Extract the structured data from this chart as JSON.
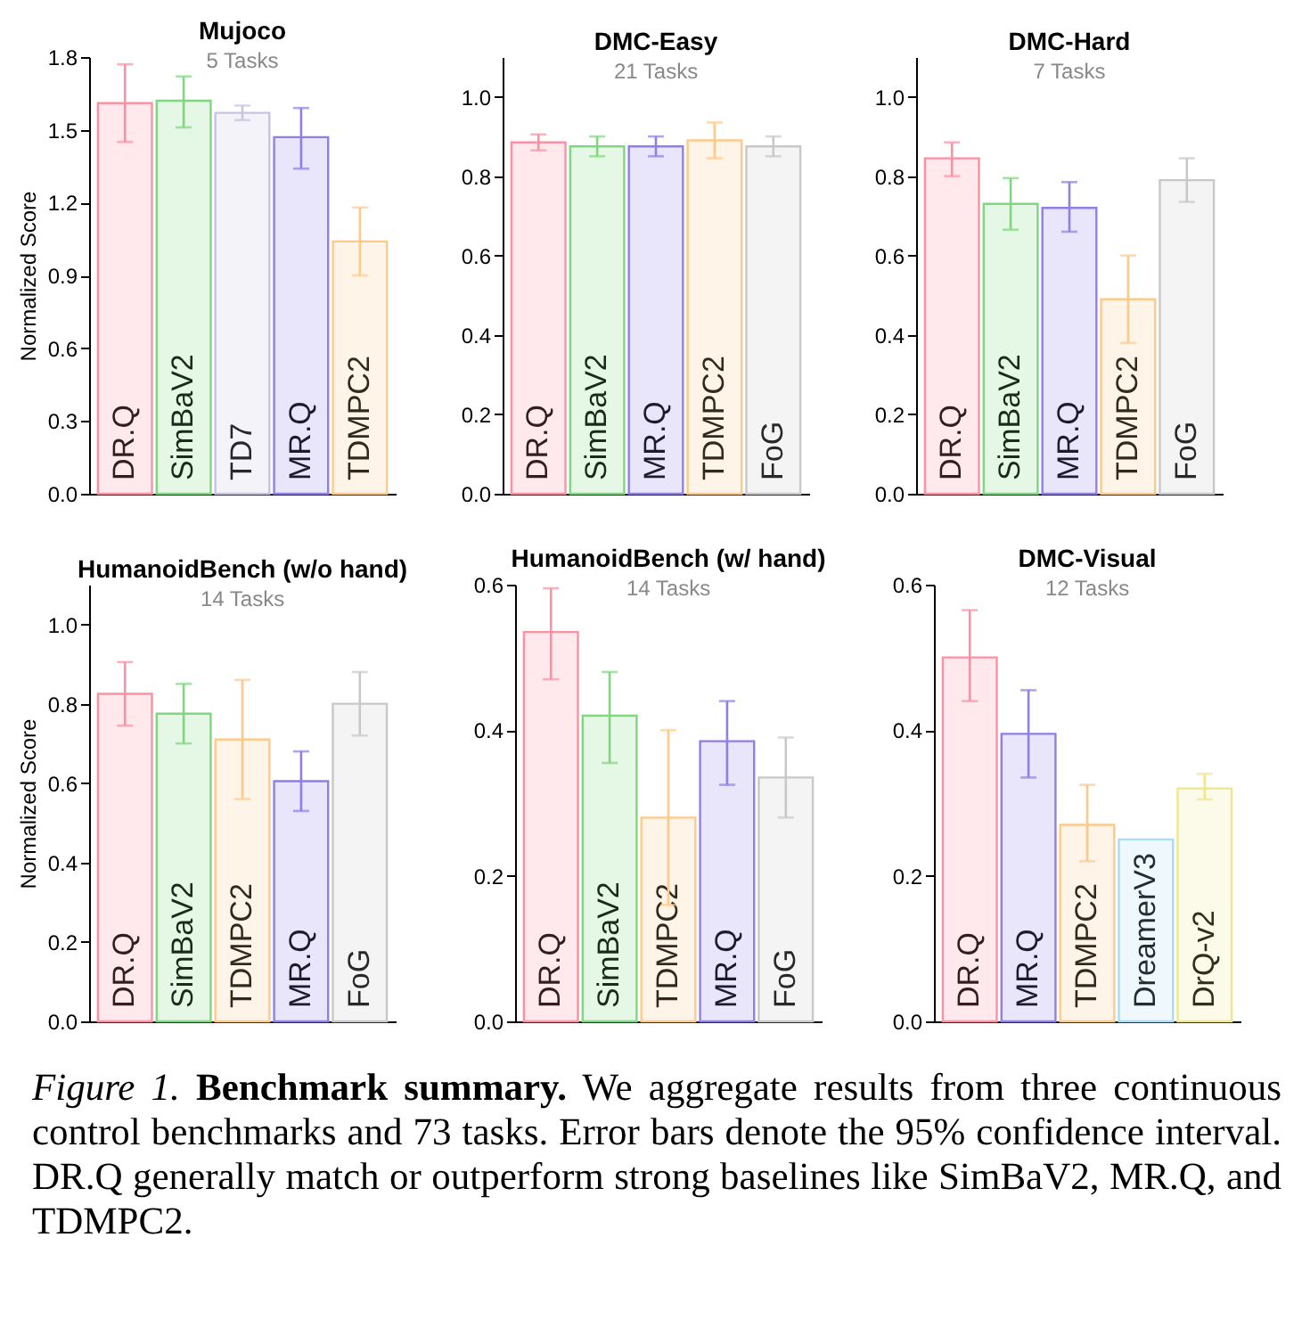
{
  "chart_data": [
    {
      "type": "bar",
      "title": "Mujoco",
      "subtitle": "5 Tasks",
      "ylabel": "Normalized Score",
      "categories": [
        "DR.Q",
        "SimBaV2",
        "TD7",
        "MR.Q",
        "TDMPC2"
      ],
      "values": [
        1.61,
        1.62,
        1.57,
        1.47,
        1.04
      ],
      "errors": [
        [
          1.45,
          1.77
        ],
        [
          1.51,
          1.72
        ],
        [
          1.54,
          1.6
        ],
        [
          1.34,
          1.59
        ],
        [
          0.9,
          1.18
        ]
      ],
      "colors": [
        "#ff8fa3",
        "#7fd77f",
        "#c8c3e0",
        "#8f7fe8",
        "#ffc98a"
      ],
      "ylim": [
        0,
        1.8
      ],
      "yticks": [
        {
          "value": 0,
          "label": "0.0"
        },
        {
          "value": 0.3,
          "label": "0.3"
        },
        {
          "value": 0.6,
          "label": "0.6"
        },
        {
          "value": 0.9,
          "label": "0.9"
        },
        {
          "value": 1.2,
          "label": "1.2"
        },
        {
          "value": 1.5,
          "label": "1.5"
        },
        {
          "value": 1.8,
          "label": "1.8"
        }
      ]
    },
    {
      "type": "bar",
      "title": "DMC-Easy",
      "subtitle": "21 Tasks",
      "categories": [
        "DR.Q",
        "SimBaV2",
        "MR.Q",
        "TDMPC2",
        "FoG"
      ],
      "values": [
        0.885,
        0.875,
        0.875,
        0.89,
        0.875
      ],
      "errors": [
        [
          0.865,
          0.905
        ],
        [
          0.85,
          0.9
        ],
        [
          0.85,
          0.9
        ],
        [
          0.845,
          0.935
        ],
        [
          0.85,
          0.9
        ]
      ],
      "colors": [
        "#ff8fa3",
        "#7fd77f",
        "#8f7fe8",
        "#ffc98a",
        "#c8c8c8"
      ],
      "ylim": [
        0,
        1.1
      ],
      "yticks": [
        {
          "value": 0,
          "label": "0.0"
        },
        {
          "value": 0.2,
          "label": "0.2"
        },
        {
          "value": 0.4,
          "label": "0.4"
        },
        {
          "value": 0.6,
          "label": "0.6"
        },
        {
          "value": 0.8,
          "label": "0.8"
        },
        {
          "value": 1,
          "label": "1.0"
        }
      ]
    },
    {
      "type": "bar",
      "title": "DMC-Hard",
      "subtitle": "7 Tasks",
      "categories": [
        "DR.Q",
        "SimBaV2",
        "MR.Q",
        "TDMPC2",
        "FoG"
      ],
      "values": [
        0.845,
        0.73,
        0.72,
        0.49,
        0.79
      ],
      "errors": [
        [
          0.8,
          0.885
        ],
        [
          0.665,
          0.795
        ],
        [
          0.66,
          0.785
        ],
        [
          0.38,
          0.6
        ],
        [
          0.735,
          0.845
        ]
      ],
      "colors": [
        "#ff8fa3",
        "#7fd77f",
        "#8f7fe8",
        "#ffc98a",
        "#c8c8c8"
      ],
      "ylim": [
        0,
        1.1
      ],
      "yticks": [
        {
          "value": 0,
          "label": "0.0"
        },
        {
          "value": 0.2,
          "label": "0.2"
        },
        {
          "value": 0.4,
          "label": "0.4"
        },
        {
          "value": 0.6,
          "label": "0.6"
        },
        {
          "value": 0.8,
          "label": "0.8"
        },
        {
          "value": 1,
          "label": "1.0"
        }
      ]
    },
    {
      "type": "bar",
      "title": "HumanoidBench (w/o hand)",
      "subtitle": "14 Tasks",
      "ylabel": "Normalized Score",
      "categories": [
        "DR.Q",
        "SimBaV2",
        "TDMPC2",
        "MR.Q",
        "FoG"
      ],
      "values": [
        0.825,
        0.775,
        0.71,
        0.605,
        0.8
      ],
      "errors": [
        [
          0.745,
          0.905
        ],
        [
          0.7,
          0.85
        ],
        [
          0.56,
          0.86
        ],
        [
          0.53,
          0.68
        ],
        [
          0.72,
          0.88
        ]
      ],
      "colors": [
        "#ff8fa3",
        "#7fd77f",
        "#ffc98a",
        "#8f7fe8",
        "#c8c8c8"
      ],
      "ylim": [
        0,
        1.1
      ],
      "yticks": [
        {
          "value": 0,
          "label": "0.0"
        },
        {
          "value": 0.2,
          "label": "0.2"
        },
        {
          "value": 0.4,
          "label": "0.4"
        },
        {
          "value": 0.6,
          "label": "0.6"
        },
        {
          "value": 0.8,
          "label": "0.8"
        },
        {
          "value": 1,
          "label": "1.0"
        }
      ]
    },
    {
      "type": "bar",
      "title": "HumanoidBench (w/ hand)",
      "subtitle": "14 Tasks",
      "categories": [
        "DR.Q",
        "SimBaV2",
        "TDMPC2",
        "MR.Q",
        "FoG"
      ],
      "values": [
        0.535,
        0.42,
        0.28,
        0.385,
        0.335
      ],
      "errors": [
        [
          0.47,
          0.595
        ],
        [
          0.355,
          0.48
        ],
        [
          0.16,
          0.4
        ],
        [
          0.325,
          0.44
        ],
        [
          0.28,
          0.39
        ]
      ],
      "colors": [
        "#ff8fa3",
        "#7fd77f",
        "#ffc98a",
        "#8f7fe8",
        "#c8c8c8"
      ],
      "ylim": [
        0,
        0.6
      ],
      "yticks": [
        {
          "value": 0,
          "label": "0.0"
        },
        {
          "value": 0.2,
          "label": "0.2"
        },
        {
          "value": 0.4,
          "label": "0.4"
        },
        {
          "value": 0.6,
          "label": "0.6"
        }
      ]
    },
    {
      "type": "bar",
      "title": "DMC-Visual",
      "subtitle": "12 Tasks",
      "categories": [
        "DR.Q",
        "MR.Q",
        "TDMPC2",
        "DreamerV3",
        "DrQ-v2"
      ],
      "values": [
        0.5,
        0.395,
        0.27,
        0.25,
        0.32
      ],
      "errors": [
        [
          0.44,
          0.565
        ],
        [
          0.335,
          0.455
        ],
        [
          0.22,
          0.325
        ],
        null,
        [
          0.305,
          0.34
        ]
      ],
      "colors": [
        "#ff8fa3",
        "#8f7fe8",
        "#ffc98a",
        "#a9dcf5",
        "#f0e68c"
      ],
      "ylim": [
        0,
        0.6
      ],
      "yticks": [
        {
          "value": 0,
          "label": "0.0"
        },
        {
          "value": 0.2,
          "label": "0.2"
        },
        {
          "value": 0.4,
          "label": "0.4"
        },
        {
          "value": 0.6,
          "label": "0.6"
        }
      ],
      "annotations": [
        "Figure 1.",
        "Benchmark summary.",
        "We aggregate results from three continuous control benchmarks and 73 tasks. Error bars denote the 95% confidence interval. DR.Q generally match or outperform strong baselines like SimBaV2, MR.Q, and TDMPC2."
      ]
    }
  ]
}
